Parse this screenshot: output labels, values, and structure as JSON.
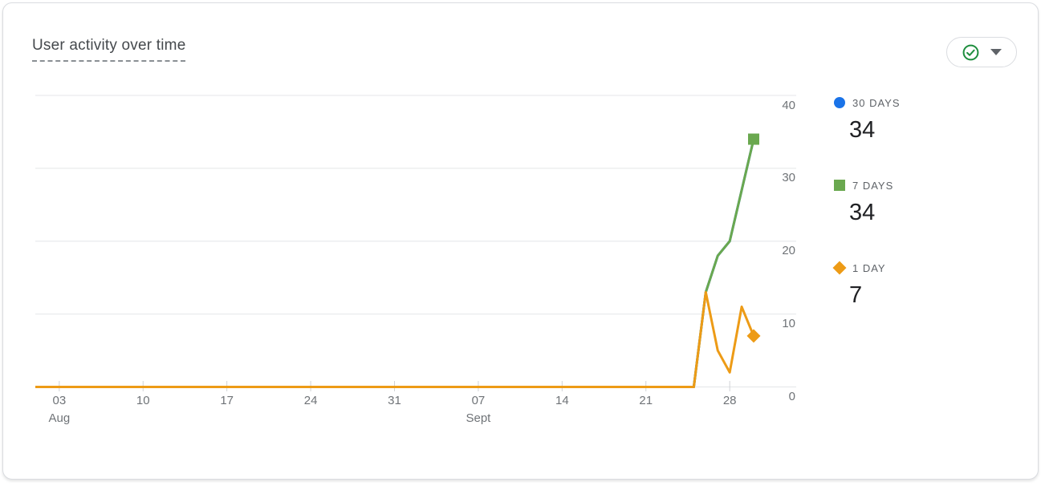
{
  "card": {
    "title": "User activity over time",
    "toolbar": {
      "status_icon": "check-circle-icon",
      "status_color": "#1e8e3e",
      "dropdown_icon": "chevron-down-icon"
    }
  },
  "legend": [
    {
      "label": "30 DAYS",
      "value": "34",
      "color": "#1a73e8",
      "marker": "circle"
    },
    {
      "label": "7 DAYS",
      "value": "34",
      "color": "#6aa84f",
      "marker": "square"
    },
    {
      "label": "1 DAY",
      "value": "7",
      "color": "#ed9b16",
      "marker": "diamond"
    }
  ],
  "chart_data": {
    "type": "line",
    "title": "User activity over time",
    "x_axis": {
      "unit": "day",
      "start_date": "Aug 1",
      "end_date": "Sep 30",
      "day_span": 60,
      "ticks": [
        {
          "day": 2,
          "label": "03",
          "month": "Aug"
        },
        {
          "day": 9,
          "label": "10"
        },
        {
          "day": 16,
          "label": "17"
        },
        {
          "day": 23,
          "label": "24"
        },
        {
          "day": 30,
          "label": "31"
        },
        {
          "day": 37,
          "label": "07",
          "month": "Sept"
        },
        {
          "day": 44,
          "label": "14"
        },
        {
          "day": 51,
          "label": "21"
        },
        {
          "day": 58,
          "label": "28"
        }
      ]
    },
    "y_axis": {
      "range": [
        0,
        40
      ],
      "ticks": [
        0,
        10,
        20,
        30,
        40
      ]
    },
    "grid": "horizontal",
    "legend_position": "right",
    "tail_dates": [
      "Sep 25",
      "Sep 26",
      "Sep 27",
      "Sep 28",
      "Sep 29",
      "Sep 30"
    ],
    "series": [
      {
        "name": "30 DAYS",
        "color": "#1a73e8",
        "marker": "circle",
        "note": "hidden - overlaps 7 DAYS line exactly",
        "points": [
          [
            0,
            0
          ],
          [
            55,
            0
          ],
          [
            56,
            13
          ],
          [
            57,
            18
          ],
          [
            58,
            20
          ],
          [
            59,
            27
          ],
          [
            60,
            34
          ]
        ]
      },
      {
        "name": "7 DAYS",
        "color": "#6aa84f",
        "marker": "square",
        "points": [
          [
            0,
            0
          ],
          [
            55,
            0
          ],
          [
            56,
            13
          ],
          [
            57,
            18
          ],
          [
            58,
            20
          ],
          [
            59,
            27
          ],
          [
            60,
            34
          ]
        ]
      },
      {
        "name": "1 DAY",
        "color": "#ed9b16",
        "marker": "diamond",
        "points": [
          [
            0,
            0
          ],
          [
            55,
            0
          ],
          [
            56,
            13
          ],
          [
            57,
            5
          ],
          [
            58,
            2
          ],
          [
            59,
            11
          ],
          [
            60,
            7
          ]
        ]
      }
    ]
  }
}
